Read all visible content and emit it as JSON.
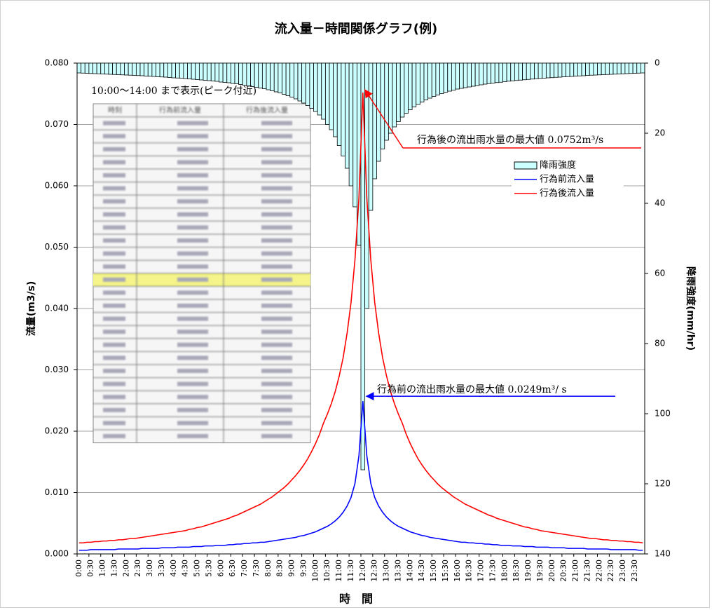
{
  "chart_data": {
    "type": "bar",
    "title": "流入量－時間関係グラフ(例)",
    "x_label": "時　間",
    "y_label": "流量(m3/s)",
    "y2_label": "降雨強度(mm/hr)",
    "grid": true,
    "legend_position": "upper-right",
    "categories": [
      "0:00",
      null,
      null,
      "0:30",
      null,
      null,
      "1:00",
      null,
      null,
      "1:30",
      null,
      null,
      "2:00",
      null,
      null,
      "2:30",
      null,
      null,
      "3:00",
      null,
      null,
      "3:30",
      null,
      null,
      "4:00",
      null,
      null,
      "4:30",
      null,
      null,
      "5:00",
      null,
      null,
      "5:30",
      null,
      null,
      "6:00",
      null,
      null,
      "6:30",
      null,
      null,
      "7:00",
      null,
      null,
      "7:30",
      null,
      null,
      "8:00",
      null,
      null,
      "8:30",
      null,
      null,
      "9:00",
      null,
      null,
      "9:30",
      null,
      null,
      "10:00",
      null,
      null,
      "10:30",
      null,
      null,
      "11:00",
      null,
      null,
      "11:30",
      null,
      null,
      "12:00",
      null,
      null,
      "12:30",
      null,
      null,
      "13:00",
      null,
      null,
      "13:30",
      null,
      null,
      "14:00",
      null,
      null,
      "14:30",
      null,
      null,
      "15:00",
      null,
      null,
      "15:30",
      null,
      null,
      "16:00",
      null,
      null,
      "16:30",
      null,
      null,
      "17:00",
      null,
      null,
      "17:30",
      null,
      null,
      "18:00",
      null,
      null,
      "18:30",
      null,
      null,
      "19:00",
      null,
      null,
      "19:30",
      null,
      null,
      "20:00",
      null,
      null,
      "20:30",
      null,
      null,
      "21:00",
      null,
      null,
      "21:30",
      null,
      null,
      "22:00",
      null,
      null,
      "22:30",
      null,
      null,
      "23:00",
      null,
      null,
      "23:30",
      null,
      null
    ],
    "series": [
      {
        "name": "降雨強度",
        "type": "bar",
        "axis": "y2",
        "color": "#ccffff",
        "values": [
          2.8,
          2.85,
          2.9,
          2.95,
          3.0,
          3.05,
          3.1,
          3.15,
          3.2,
          3.25,
          3.3,
          3.35,
          3.4,
          3.45,
          3.5,
          3.55,
          3.6,
          3.7,
          3.75,
          3.8,
          3.9,
          3.95,
          4.0,
          4.1,
          4.2,
          4.25,
          4.3,
          4.4,
          4.5,
          4.6,
          4.7,
          4.8,
          4.9,
          5.0,
          5.1,
          5.2,
          5.4,
          5.5,
          5.6,
          5.8,
          5.9,
          6.1,
          6.3,
          6.5,
          6.7,
          6.9,
          7.1,
          7.3,
          7.6,
          7.9,
          8.2,
          8.5,
          8.9,
          9.3,
          9.7,
          10.2,
          10.8,
          11.4,
          12.1,
          12.9,
          13.8,
          14.8,
          16,
          17.5,
          19,
          21,
          23.5,
          26.5,
          30,
          35,
          41,
          52,
          116,
          70,
          42,
          33,
          28,
          24.5,
          22,
          20,
          18.2,
          16.7,
          15.4,
          14.3,
          13.3,
          12.5,
          11.8,
          11.1,
          10.5,
          10.0,
          9.5,
          9.1,
          8.7,
          8.3,
          8.0,
          7.7,
          7.4,
          7.2,
          7.0,
          6.8,
          6.6,
          6.4,
          6.2,
          6.0,
          5.85,
          5.7,
          5.55,
          5.45,
          5.3,
          5.15,
          5.05,
          4.95,
          4.85,
          4.75,
          4.65,
          4.55,
          4.45,
          4.35,
          4.3,
          4.2,
          4.15,
          4.05,
          4.0,
          3.9,
          3.85,
          3.8,
          3.7,
          3.65,
          3.6,
          3.5,
          3.45,
          3.4,
          3.35,
          3.3,
          3.25,
          3.2,
          3.15,
          3.1,
          3.05,
          3.0,
          2.95,
          2.9,
          2.85,
          2.8
        ]
      },
      {
        "name": "行為前流入量",
        "type": "line",
        "color": "#0000ff",
        "values": [
          0.0006,
          0.0006,
          0.0006,
          0.0007,
          0.0007,
          0.0007,
          0.0007,
          0.0007,
          0.0007,
          0.0007,
          0.0008,
          0.0008,
          0.0008,
          0.0008,
          0.0008,
          0.0008,
          0.0009,
          0.0009,
          0.0009,
          0.0009,
          0.0009,
          0.001,
          0.001,
          0.001,
          0.001,
          0.0011,
          0.0011,
          0.0011,
          0.0011,
          0.0012,
          0.0012,
          0.0012,
          0.0013,
          0.0013,
          0.0013,
          0.0014,
          0.0014,
          0.0014,
          0.0015,
          0.0015,
          0.0016,
          0.0016,
          0.0017,
          0.0017,
          0.0018,
          0.0018,
          0.0019,
          0.0019,
          0.002,
          0.0021,
          0.0022,
          0.0023,
          0.0024,
          0.0025,
          0.0026,
          0.0027,
          0.0029,
          0.003,
          0.0032,
          0.0034,
          0.0036,
          0.0039,
          0.0042,
          0.0045,
          0.0049,
          0.0054,
          0.006,
          0.0068,
          0.0078,
          0.0092,
          0.0115,
          0.016,
          0.0249,
          0.016,
          0.0115,
          0.0092,
          0.0078,
          0.0068,
          0.006,
          0.0054,
          0.0049,
          0.0045,
          0.0042,
          0.0039,
          0.0036,
          0.0034,
          0.0032,
          0.003,
          0.0029,
          0.0027,
          0.0026,
          0.0025,
          0.0024,
          0.0023,
          0.0022,
          0.0021,
          0.002,
          0.0019,
          0.0019,
          0.0018,
          0.0018,
          0.0017,
          0.0017,
          0.0016,
          0.0016,
          0.0015,
          0.0015,
          0.0014,
          0.0014,
          0.0014,
          0.0013,
          0.0013,
          0.0013,
          0.0012,
          0.0012,
          0.0012,
          0.0011,
          0.0011,
          0.0011,
          0.0011,
          0.001,
          0.001,
          0.001,
          0.001,
          0.0009,
          0.0009,
          0.0009,
          0.0009,
          0.0009,
          0.0008,
          0.0008,
          0.0008,
          0.0008,
          0.0008,
          0.0008,
          0.0007,
          0.0007,
          0.0007,
          0.0007,
          0.0007,
          0.0007,
          0.0007,
          0.0006,
          0.0006
        ]
      },
      {
        "name": "行為後流入量",
        "type": "line",
        "color": "#ff0000",
        "values": [
          0.0018,
          0.0018,
          0.0019,
          0.0019,
          0.002,
          0.002,
          0.0021,
          0.0021,
          0.0022,
          0.0022,
          0.0023,
          0.0023,
          0.0024,
          0.0025,
          0.0025,
          0.0026,
          0.0027,
          0.0028,
          0.0029,
          0.003,
          0.0031,
          0.0032,
          0.0033,
          0.0034,
          0.0035,
          0.0036,
          0.0037,
          0.0038,
          0.004,
          0.0041,
          0.0043,
          0.0044,
          0.0046,
          0.0048,
          0.005,
          0.0052,
          0.0054,
          0.0056,
          0.0058,
          0.0061,
          0.0063,
          0.0066,
          0.0069,
          0.0072,
          0.0075,
          0.0078,
          0.0081,
          0.0085,
          0.0089,
          0.0093,
          0.0098,
          0.0103,
          0.0108,
          0.0114,
          0.0121,
          0.0128,
          0.0136,
          0.0145,
          0.0155,
          0.0167,
          0.018,
          0.0195,
          0.0213,
          0.0228,
          0.0245,
          0.0265,
          0.029,
          0.032,
          0.036,
          0.041,
          0.048,
          0.058,
          0.0752,
          0.058,
          0.048,
          0.041,
          0.036,
          0.032,
          0.029,
          0.0265,
          0.0245,
          0.0228,
          0.0213,
          0.0195,
          0.018,
          0.0167,
          0.0155,
          0.0145,
          0.0136,
          0.0128,
          0.0121,
          0.0114,
          0.0108,
          0.0103,
          0.0098,
          0.0093,
          0.0089,
          0.0085,
          0.0081,
          0.0078,
          0.0075,
          0.0072,
          0.0069,
          0.0066,
          0.0063,
          0.0061,
          0.0058,
          0.0056,
          0.0054,
          0.0052,
          0.005,
          0.0048,
          0.0046,
          0.0044,
          0.0043,
          0.0041,
          0.004,
          0.0038,
          0.0037,
          0.0036,
          0.0035,
          0.0034,
          0.0033,
          0.0032,
          0.0031,
          0.003,
          0.0029,
          0.0028,
          0.0027,
          0.0026,
          0.0025,
          0.0025,
          0.0024,
          0.0023,
          0.0023,
          0.0022,
          0.0022,
          0.0021,
          0.0021,
          0.002,
          0.002,
          0.0019,
          0.0019,
          0.0018
        ]
      }
    ],
    "ylim": [
      0,
      0.08
    ],
    "yticks": [
      {
        "value": 0,
        "label": "0.000"
      },
      {
        "value": 0.01,
        "label": "0.010"
      },
      {
        "value": 0.02,
        "label": "0.020"
      },
      {
        "value": 0.03,
        "label": "0.030"
      },
      {
        "value": 0.04,
        "label": "0.040"
      },
      {
        "value": 0.05,
        "label": "0.050"
      },
      {
        "value": 0.06,
        "label": "0.060"
      },
      {
        "value": 0.07,
        "label": "0.070"
      },
      {
        "value": 0.08,
        "label": "0.080"
      }
    ],
    "y2lim": [
      140,
      0
    ],
    "y2ticks": [
      0,
      20,
      40,
      60,
      80,
      100,
      120,
      140
    ],
    "annotations": [
      {
        "text": "行為後の流出雨水量の最大値 0.0752m³/s",
        "color": "#ff0000"
      },
      {
        "text": "行為前の流出雨水量の最大値 0.0249m³/ s",
        "color": "#0000ff"
      },
      {
        "text": "10:00～14:00 まで表示(ピーク付近)",
        "color": "#000000"
      }
    ],
    "inset_table": {
      "columns": [
        "時刻",
        "行為前流入量",
        "行為後流入量"
      ]
    }
  }
}
